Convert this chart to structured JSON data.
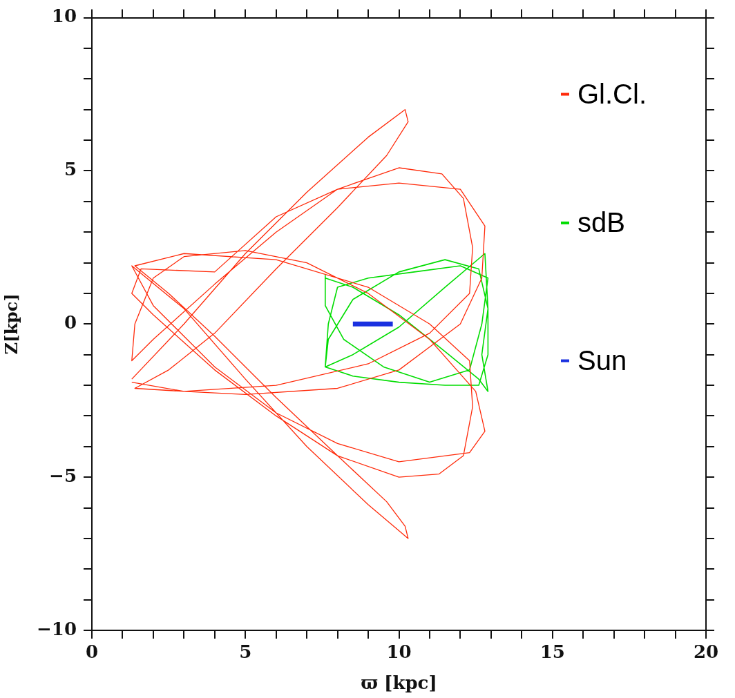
{
  "chart_data": {
    "type": "line",
    "xlabel": "ϖ [kpc]",
    "ylabel": "Z[kpc]",
    "xlim": [
      0,
      20
    ],
    "ylim": [
      -10,
      10
    ],
    "xticks": [
      0,
      {
        "value": 1,
        "label": null
      },
      {
        "value": 2,
        "label": null
      },
      {
        "value": 3,
        "label": null
      },
      {
        "value": 4,
        "label": null
      },
      5,
      {
        "value": 6,
        "label": null
      },
      {
        "value": 7,
        "label": null
      },
      {
        "value": 8,
        "label": null
      },
      {
        "value": 9,
        "label": null
      },
      10,
      {
        "value": 11,
        "label": null
      },
      {
        "value": 12,
        "label": null
      },
      {
        "value": 13,
        "label": null
      },
      {
        "value": 14,
        "label": null
      },
      15,
      {
        "value": 16,
        "label": null
      },
      {
        "value": 17,
        "label": null
      },
      {
        "value": 18,
        "label": null
      },
      {
        "value": 19,
        "label": null
      },
      20
    ],
    "yticks": [
      {
        "value": -10,
        "label": "−10"
      },
      {
        "value": -9,
        "label": null
      },
      {
        "value": -8,
        "label": null
      },
      {
        "value": -7,
        "label": null
      },
      {
        "value": -6,
        "label": null
      },
      {
        "value": -5,
        "label": "−5"
      },
      {
        "value": -4,
        "label": null
      },
      {
        "value": -3,
        "label": null
      },
      {
        "value": -2,
        "label": null
      },
      {
        "value": -1,
        "label": null
      },
      0,
      {
        "value": 1,
        "label": null
      },
      {
        "value": 2,
        "label": null
      },
      {
        "value": 3,
        "label": null
      },
      {
        "value": 4,
        "label": null
      },
      5,
      {
        "value": 6,
        "label": null
      },
      {
        "value": 7,
        "label": null
      },
      {
        "value": 8,
        "label": null
      },
      {
        "value": 9,
        "label": null
      },
      10
    ],
    "grid": false,
    "legend": "top right",
    "marker": "none",
    "line_style": "solid",
    "series": [
      {
        "name": "Gl.Cl.",
        "color": "#ff2a0a",
        "x": [
          1.3,
          3,
          5,
          7,
          9,
          10.2,
          10.3,
          9.6,
          8,
          6,
          4,
          2.5,
          1.4,
          3,
          6,
          9,
          11,
          12.3,
          12.4,
          12.1,
          11.4,
          10,
          8,
          6,
          4,
          2,
          1.3,
          1.4,
          2,
          3,
          5,
          7,
          9,
          11,
          12.5,
          12.8,
          12.3,
          10,
          8,
          6,
          4,
          2,
          1.3,
          3,
          5,
          7,
          9,
          10.3,
          10.2,
          9.6,
          8,
          6,
          4,
          2.5,
          1.4,
          3,
          6,
          9,
          11,
          12.3,
          12.4,
          12.1,
          11.3,
          10,
          8,
          6,
          4,
          2,
          1.3,
          1.6,
          4,
          6,
          8,
          10,
          12,
          12.8,
          12.7,
          12,
          10,
          8,
          5,
          3,
          1.3
        ],
        "values": [
          -1.8,
          0,
          2.3,
          4.3,
          6.1,
          7,
          6.6,
          5.5,
          3.8,
          1.8,
          -0.3,
          -1.5,
          -2.1,
          -2.2,
          -2,
          -1.3,
          -0.3,
          1,
          2.5,
          4.1,
          4.9,
          5.1,
          4.4,
          3,
          1.3,
          -0.5,
          -1.2,
          0,
          1.5,
          2.2,
          2.4,
          2,
          1,
          -0.5,
          -2.2,
          -3.5,
          -4.2,
          -4.5,
          -3.9,
          -2.9,
          -1.4,
          0.6,
          1.9,
          0.5,
          -1.8,
          -4,
          -5.9,
          -7,
          -6.6,
          -5.8,
          -4.3,
          -2.4,
          -0.4,
          1,
          1.9,
          2.3,
          2.1,
          1.2,
          0,
          -1.2,
          -2.7,
          -4.3,
          -4.9,
          -5,
          -4.3,
          -3,
          -1.5,
          0.3,
          1,
          1.8,
          1.7,
          3.5,
          4.4,
          4.6,
          4.4,
          3.2,
          1.5,
          0,
          -1.5,
          -2.1,
          -2.3,
          -2.2,
          -1.9
        ]
      },
      {
        "name": "sdB",
        "color": "#00dd00",
        "x": [
          7.6,
          8.5,
          10,
          11.5,
          12.6,
          12.9,
          12.7,
          12.9,
          12.6,
          11.5,
          10,
          8.5,
          7.7,
          7.6,
          8.5,
          10,
          11.5,
          12.6,
          12.9,
          12.9,
          12.8,
          11.5,
          10,
          8.5,
          7.6,
          7.7,
          8,
          9,
          10.5,
          12,
          12.9,
          12.7,
          12.3,
          11,
          9.5,
          8.2,
          7.6,
          7.6
        ],
        "values": [
          1.5,
          1.2,
          0.3,
          -0.9,
          -1.8,
          -2.2,
          -1,
          0.5,
          1.8,
          2.1,
          1.7,
          0.8,
          -0.5,
          -1.4,
          -1.7,
          -1.9,
          -2,
          -2,
          -1,
          0.5,
          2.3,
          1.2,
          -0.1,
          -1,
          -1.4,
          0,
          1.2,
          1.5,
          1.7,
          1.9,
          1.5,
          0,
          -1.5,
          -1.9,
          -1.4,
          -0.5,
          0.6,
          1.6
        ]
      },
      {
        "name": "Sun",
        "color": "#1a30e0",
        "x": [
          8.5,
          9.8
        ],
        "values": [
          0,
          0
        ]
      }
    ]
  }
}
